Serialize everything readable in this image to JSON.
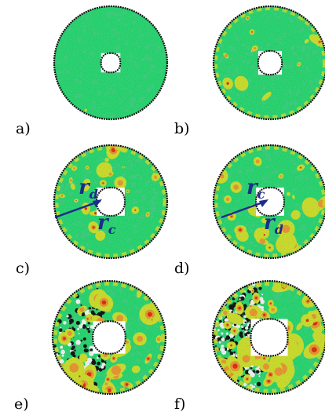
{
  "panels": [
    {
      "label": "a)",
      "damage": 0.02,
      "annotation": null
    },
    {
      "label": "b)",
      "damage": 0.22,
      "annotation": null
    },
    {
      "label": "c)",
      "damage": 0.42,
      "annotation": {
        "upper": "d",
        "lower": "c"
      }
    },
    {
      "label": "d)",
      "damage": 0.42,
      "annotation": {
        "upper": "c",
        "lower": "d"
      }
    },
    {
      "label": "e)",
      "damage": 0.62,
      "annotation": null
    },
    {
      "label": "f)",
      "damage": 0.82,
      "annotation": null
    }
  ],
  "annotation_symbol": "r",
  "colors": {
    "healthy": "#33e27a",
    "healthy_alt": "#4cd88d",
    "moderate": "#d8ea36",
    "high": "#f4a23a",
    "severe": "#e8371d",
    "failed": "#1d1d1d",
    "annotation": "#1c2c8c",
    "boundary": "#111111"
  }
}
